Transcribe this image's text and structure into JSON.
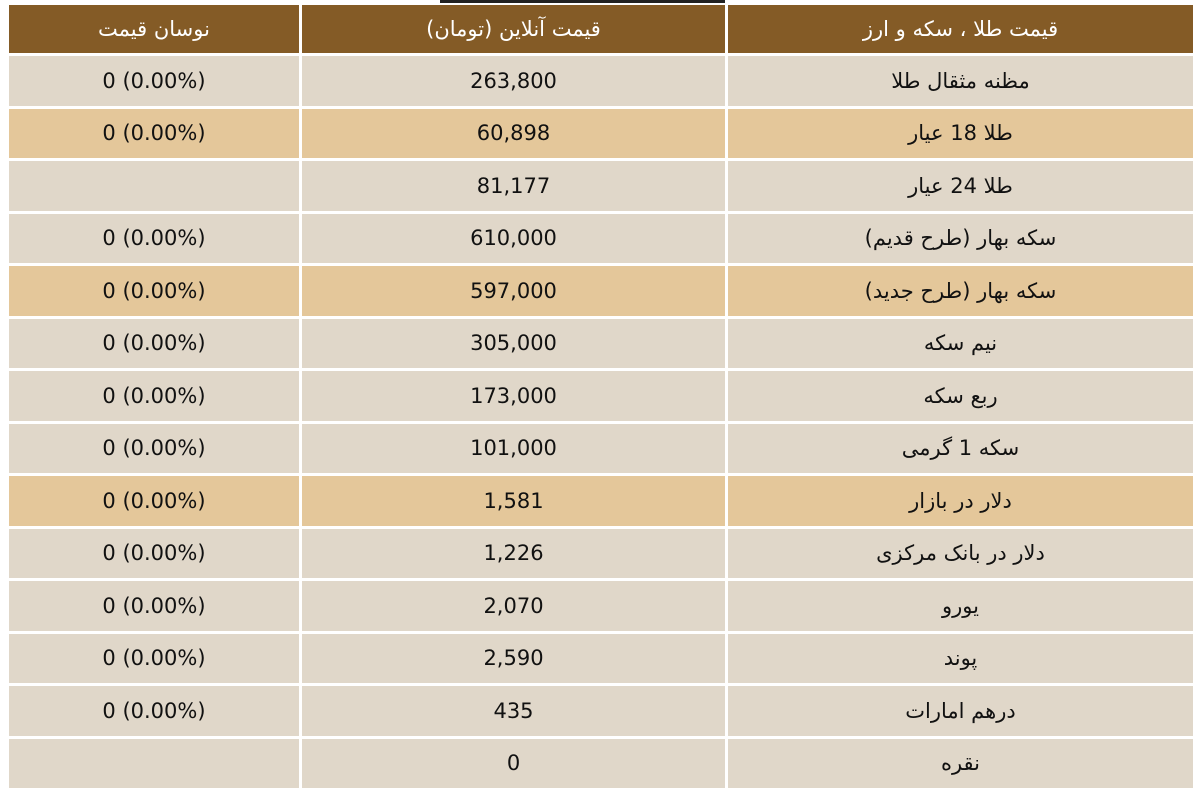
{
  "colors": {
    "header_bg": "#845b26",
    "row_bg": "#e0d7c9",
    "highlight_bg": "#e4c79a"
  },
  "headers": [
    "قیمت طلا ، سکه و ارز",
    "قیمت آنلاین (تومان)",
    "نوسان قیمت"
  ],
  "rows": [
    {
      "name": "مظنه مثقال طلا",
      "price": "263,800",
      "change": "0 (0.00%)",
      "highlight": false
    },
    {
      "name": "طلا 18 عیار",
      "price": "60,898",
      "change": "0 (0.00%)",
      "highlight": true
    },
    {
      "name": "طلا 24 عیار",
      "price": "81,177",
      "change": "",
      "highlight": false
    },
    {
      "name": "سکه بهار (طرح قدیم)",
      "price": "610,000",
      "change": "0 (0.00%)",
      "highlight": false
    },
    {
      "name": "سکه بهار (طرح جدید)",
      "price": "597,000",
      "change": "0 (0.00%)",
      "highlight": true
    },
    {
      "name": "نیم سکه",
      "price": "305,000",
      "change": "0 (0.00%)",
      "highlight": false
    },
    {
      "name": "ربع سکه",
      "price": "173,000",
      "change": "0 (0.00%)",
      "highlight": false
    },
    {
      "name": "سکه 1 گرمی",
      "price": "101,000",
      "change": "0 (0.00%)",
      "highlight": false
    },
    {
      "name": "دلار در بازار",
      "price": "1,581",
      "change": "0 (0.00%)",
      "highlight": true
    },
    {
      "name": "دلار در بانک مرکزی",
      "price": "1,226",
      "change": "0 (0.00%)",
      "highlight": false
    },
    {
      "name": "یورو",
      "price": "2,070",
      "change": "0 (0.00%)",
      "highlight": false
    },
    {
      "name": "پوند",
      "price": "2,590",
      "change": "0 (0.00%)",
      "highlight": false
    },
    {
      "name": "درهم امارات",
      "price": "435",
      "change": "0 (0.00%)",
      "highlight": false
    },
    {
      "name": "نقره",
      "price": "0",
      "change": "",
      "highlight": false
    }
  ]
}
